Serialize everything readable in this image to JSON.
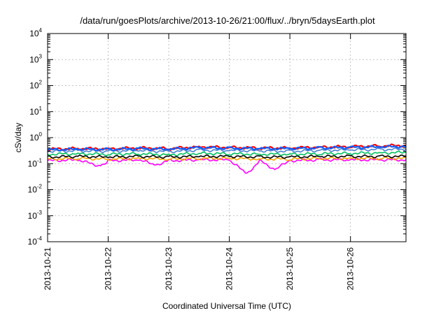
{
  "chart_data": {
    "type": "line",
    "title": "/data/run/goesPlots/archive/2013-10-26/21:00/flux/../bryn/5daysEarth.plot",
    "xlabel": "Coordinated Universal Time (UTC)",
    "ylabel": "cSv/day",
    "yscale": "log",
    "ylim": [
      0.0001,
      10000
    ],
    "y_ticks": [
      {
        "base": "10",
        "exp": "-4",
        "value": 0.0001
      },
      {
        "base": "10",
        "exp": "-3",
        "value": 0.001
      },
      {
        "base": "10",
        "exp": "-2",
        "value": 0.01
      },
      {
        "base": "10",
        "exp": "-1",
        "value": 0.1
      },
      {
        "base": "10",
        "exp": "0",
        "value": 1
      },
      {
        "base": "10",
        "exp": "1",
        "value": 10
      },
      {
        "base": "10",
        "exp": "2",
        "value": 100
      },
      {
        "base": "10",
        "exp": "3",
        "value": 1000
      },
      {
        "base": "10",
        "exp": "4",
        "value": 10000
      }
    ],
    "xlim": [
      "2013-10-21",
      "2013-10-26T22:00"
    ],
    "x_ticks": [
      "2013-10-21",
      "2013-10-22",
      "2013-10-23",
      "2013-10-24",
      "2013-10-25",
      "2013-10-26"
    ],
    "grid": true,
    "legend": "none",
    "series": [
      {
        "color": "#ff00ff",
        "x": [
          "2013-10-21",
          "2013-10-21T12:00",
          "2013-10-21T21:00",
          "2013-10-22",
          "2013-10-22T12:00",
          "2013-10-22T19:00",
          "2013-10-23",
          "2013-10-23T12:00",
          "2013-10-24",
          "2013-10-24T07:00",
          "2013-10-24T12:00",
          "2013-10-24T18:00",
          "2013-10-25",
          "2013-10-25T12:00",
          "2013-10-26",
          "2013-10-26T12:00",
          "2013-10-26T22:00"
        ],
        "y": [
          0.13,
          0.14,
          0.08,
          0.13,
          0.14,
          0.09,
          0.13,
          0.14,
          0.14,
          0.04,
          0.13,
          0.06,
          0.13,
          0.14,
          0.14,
          0.14,
          0.14
        ]
      },
      {
        "color": "#ffa500",
        "x": [
          "2013-10-21",
          "2013-10-21T12:00",
          "2013-10-22",
          "2013-10-22T12:00",
          "2013-10-23",
          "2013-10-23T12:00",
          "2013-10-24",
          "2013-10-24T12:00",
          "2013-10-25",
          "2013-10-25T12:00",
          "2013-10-26",
          "2013-10-26T12:00",
          "2013-10-26T22:00"
        ],
        "y": [
          0.15,
          0.16,
          0.15,
          0.16,
          0.15,
          0.16,
          0.16,
          0.15,
          0.15,
          0.16,
          0.16,
          0.16,
          0.16
        ]
      },
      {
        "color": "#000000",
        "x": [
          "2013-10-21",
          "2013-10-21T12:00",
          "2013-10-22",
          "2013-10-22T12:00",
          "2013-10-23",
          "2013-10-23T12:00",
          "2013-10-24",
          "2013-10-24T12:00",
          "2013-10-25",
          "2013-10-25T12:00",
          "2013-10-26",
          "2013-10-26T12:00",
          "2013-10-26T22:00"
        ],
        "y": [
          0.18,
          0.19,
          0.18,
          0.19,
          0.18,
          0.19,
          0.19,
          0.18,
          0.18,
          0.19,
          0.19,
          0.19,
          0.19
        ]
      },
      {
        "color": "#00c060",
        "x": [
          "2013-10-21",
          "2013-10-21T12:00",
          "2013-10-22",
          "2013-10-22T12:00",
          "2013-10-23",
          "2013-10-23T12:00",
          "2013-10-24",
          "2013-10-24T12:00",
          "2013-10-25",
          "2013-10-25T12:00",
          "2013-10-26",
          "2013-10-26T12:00",
          "2013-10-26T22:00"
        ],
        "y": [
          0.23,
          0.24,
          0.23,
          0.24,
          0.22,
          0.25,
          0.24,
          0.23,
          0.23,
          0.24,
          0.25,
          0.26,
          0.27
        ]
      },
      {
        "color": "#4a7fd0",
        "x": [
          "2013-10-21",
          "2013-10-21T12:00",
          "2013-10-22",
          "2013-10-22T12:00",
          "2013-10-23",
          "2013-10-23T12:00",
          "2013-10-24",
          "2013-10-24T12:00",
          "2013-10-25",
          "2013-10-25T12:00",
          "2013-10-26",
          "2013-10-26T12:00",
          "2013-10-26T22:00"
        ],
        "y": [
          0.3,
          0.31,
          0.3,
          0.32,
          0.29,
          0.33,
          0.32,
          0.31,
          0.3,
          0.32,
          0.34,
          0.35,
          0.36
        ]
      },
      {
        "color": "#ff0000",
        "x": [
          "2013-10-21",
          "2013-10-21T12:00",
          "2013-10-22",
          "2013-10-22T12:00",
          "2013-10-23",
          "2013-10-23T12:00",
          "2013-10-24",
          "2013-10-24T12:00",
          "2013-10-25",
          "2013-10-25T12:00",
          "2013-10-26",
          "2013-10-26T12:00",
          "2013-10-26T22:00"
        ],
        "y": [
          0.36,
          0.38,
          0.37,
          0.4,
          0.38,
          0.44,
          0.42,
          0.4,
          0.4,
          0.43,
          0.45,
          0.48,
          0.5
        ]
      },
      {
        "color": "#1060ff",
        "x": [
          "2013-10-21",
          "2013-10-21T12:00",
          "2013-10-22",
          "2013-10-22T12:00",
          "2013-10-23",
          "2013-10-23T12:00",
          "2013-10-24",
          "2013-10-24T12:00",
          "2013-10-25",
          "2013-10-25T12:00",
          "2013-10-26",
          "2013-10-26T12:00",
          "2013-10-26T22:00"
        ],
        "y": [
          0.34,
          0.36,
          0.35,
          0.38,
          0.36,
          0.41,
          0.39,
          0.38,
          0.38,
          0.4,
          0.42,
          0.44,
          0.46
        ]
      }
    ]
  }
}
